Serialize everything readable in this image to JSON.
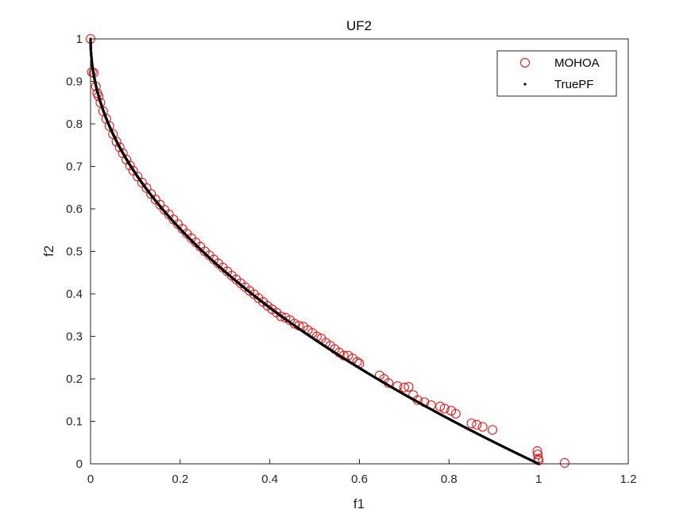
{
  "chart_data": {
    "type": "scatter",
    "title": "UF2",
    "xlabel": "f1",
    "ylabel": "f2",
    "xlim": [
      0,
      1.2
    ],
    "ylim": [
      0,
      1
    ],
    "xticks": [
      0,
      0.2,
      0.4,
      0.6,
      0.8,
      1,
      1.2
    ],
    "xtick_labels": [
      "0",
      "0.2",
      "0.4",
      "0.6",
      "0.8",
      "1",
      "1.2"
    ],
    "yticks": [
      0,
      0.1,
      0.2,
      0.3,
      0.4,
      0.5,
      0.6,
      0.7,
      0.8,
      0.9,
      1
    ],
    "ytick_labels": [
      "0",
      "0.1",
      "0.2",
      "0.3",
      "0.4",
      "0.5",
      "0.6",
      "0.7",
      "0.8",
      "0.9",
      "1"
    ],
    "grid": false,
    "legend_position": "top-right",
    "series": [
      {
        "name": "MOHOA",
        "marker": "open-circle",
        "color": "#ff0000",
        "x": [
          0.0,
          0.003,
          0.007,
          0.012,
          0.015,
          0.018,
          0.022,
          0.028,
          0.035,
          0.042,
          0.05,
          0.058,
          0.065,
          0.072,
          0.08,
          0.088,
          0.095,
          0.105,
          0.115,
          0.125,
          0.135,
          0.145,
          0.155,
          0.165,
          0.175,
          0.185,
          0.195,
          0.205,
          0.215,
          0.225,
          0.235,
          0.245,
          0.255,
          0.265,
          0.275,
          0.285,
          0.295,
          0.305,
          0.315,
          0.325,
          0.335,
          0.345,
          0.355,
          0.365,
          0.375,
          0.385,
          0.395,
          0.405,
          0.415,
          0.425,
          0.435,
          0.445,
          0.455,
          0.465,
          0.475,
          0.485,
          0.495,
          0.505,
          0.515,
          0.525,
          0.535,
          0.545,
          0.555,
          0.565,
          0.575,
          0.585,
          0.595,
          0.6,
          0.645,
          0.655,
          0.665,
          0.685,
          0.7,
          0.71,
          0.72,
          0.73,
          0.745,
          0.76,
          0.78,
          0.79,
          0.805,
          0.815,
          0.85,
          0.862,
          0.875,
          0.897,
          0.997,
          0.998,
          0.999,
          1.0,
          1.058
        ],
        "y": [
          1.0,
          0.922,
          0.92,
          0.888,
          0.872,
          0.865,
          0.85,
          0.83,
          0.812,
          0.795,
          0.776,
          0.758,
          0.745,
          0.731,
          0.716,
          0.702,
          0.69,
          0.676,
          0.662,
          0.649,
          0.635,
          0.622,
          0.61,
          0.598,
          0.587,
          0.575,
          0.564,
          0.553,
          0.542,
          0.531,
          0.521,
          0.511,
          0.5,
          0.491,
          0.481,
          0.472,
          0.462,
          0.453,
          0.443,
          0.434,
          0.425,
          0.416,
          0.407,
          0.399,
          0.39,
          0.381,
          0.372,
          0.364,
          0.356,
          0.347,
          0.344,
          0.338,
          0.33,
          0.325,
          0.323,
          0.315,
          0.308,
          0.3,
          0.295,
          0.285,
          0.278,
          0.27,
          0.262,
          0.255,
          0.255,
          0.248,
          0.24,
          0.236,
          0.208,
          0.2,
          0.19,
          0.183,
          0.18,
          0.181,
          0.162,
          0.15,
          0.145,
          0.138,
          0.135,
          0.13,
          0.125,
          0.118,
          0.095,
          0.092,
          0.087,
          0.08,
          0.03,
          0.022,
          0.012,
          0.008,
          0.002
        ]
      },
      {
        "name": "TruePF",
        "marker": "dot",
        "color": "#000000",
        "function": "f2 = 1 - sqrt(f1)",
        "x_range": [
          0,
          1
        ]
      }
    ]
  }
}
